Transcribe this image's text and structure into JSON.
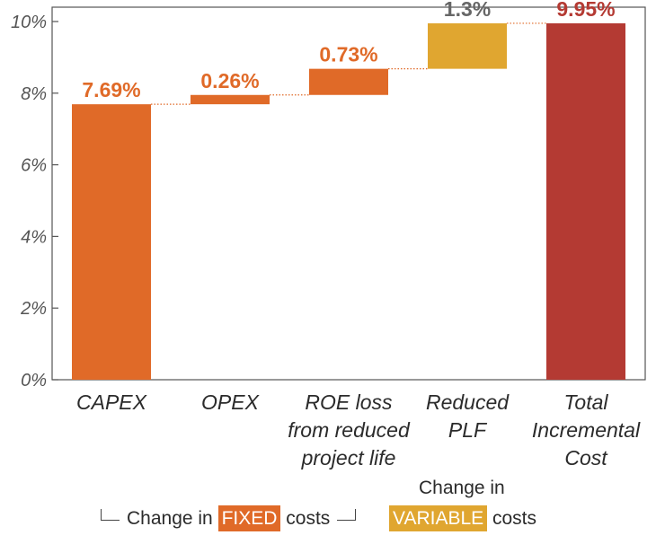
{
  "chart_data": {
    "type": "bar",
    "subtype": "waterfall",
    "categories": [
      [
        "CAPEX"
      ],
      [
        "OPEX"
      ],
      [
        "ROE loss",
        "from reduced",
        "project life"
      ],
      [
        "Reduced",
        "PLF"
      ],
      [
        "Total",
        "Incremental",
        "Cost"
      ]
    ],
    "steps": [
      {
        "start": 0,
        "end": 7.69,
        "label": "7.69%",
        "color": "#e06a28"
      },
      {
        "start": 7.69,
        "end": 7.95,
        "label": "0.26%",
        "color": "#e06a28"
      },
      {
        "start": 7.95,
        "end": 8.68,
        "label": "0.73%",
        "color": "#e06a28"
      },
      {
        "start": 8.68,
        "end": 9.95,
        "label": "1.3%",
        "color": "#e0a630"
      },
      {
        "start": 0,
        "end": 9.95,
        "label": "9.95%",
        "color": "#b43a33"
      }
    ],
    "label_colors": [
      "#e06a28",
      "#e06a28",
      "#e06a28",
      "#666666",
      "#b43a33"
    ],
    "ylim": [
      0,
      10.4
    ],
    "yticks": [
      {
        "value": 0,
        "label": "0%"
      },
      {
        "value": 2,
        "label": "2%"
      },
      {
        "value": 4,
        "label": "4%"
      },
      {
        "value": 6,
        "label": "6%"
      },
      {
        "value": 8,
        "label": "8%"
      },
      {
        "value": 10,
        "label": "10%"
      }
    ],
    "connector_color": "#e06a28",
    "grid": false
  },
  "legend": {
    "fixed_prefix": "Change in",
    "fixed_chip": "FIXED",
    "fixed_suffix": "costs",
    "fixed_color": "#e06a28",
    "variable_prefix": "Change in",
    "variable_chip": "VARIABLE",
    "variable_suffix": "costs",
    "variable_color": "#e0a630"
  }
}
